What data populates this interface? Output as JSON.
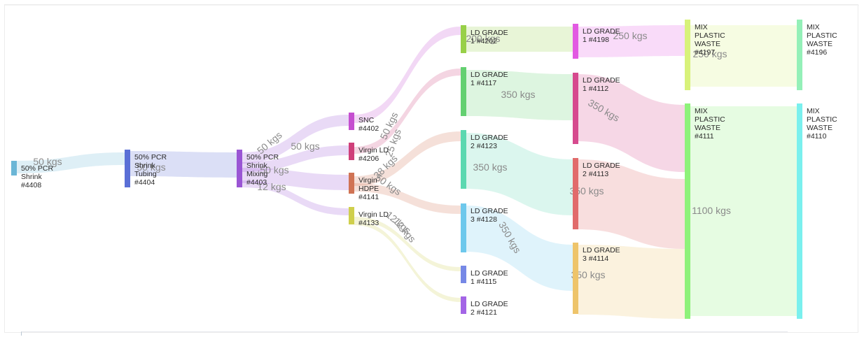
{
  "chart_data": {
    "type": "sankey",
    "unit": "kgs",
    "nodes": [
      {
        "id": "n4408",
        "label": [
          "50% PCR",
          "Shrink",
          "#4408"
        ],
        "color": "#6bb6d6"
      },
      {
        "id": "n4404",
        "label": [
          "50% PCR",
          "Shrink",
          "Tubing",
          "#4404"
        ],
        "color": "#5a6fd6"
      },
      {
        "id": "n4403",
        "label": [
          "50% PCR",
          "Shrink",
          "Mixing",
          "#4403"
        ],
        "color": "#9a55d4"
      },
      {
        "id": "n4402",
        "label": [
          "SNC",
          "#4402"
        ],
        "color": "#c54fd0"
      },
      {
        "id": "n4206",
        "label": [
          "Virgin LD",
          "#4206"
        ],
        "color": "#cf3f7a"
      },
      {
        "id": "n4141",
        "label": [
          "Virgin",
          "HDPE",
          "#4141"
        ],
        "color": "#d07354"
      },
      {
        "id": "n4133",
        "label": [
          "Virgin LD",
          "#4133"
        ],
        "color": "#cfcf4c"
      },
      {
        "id": "n4202",
        "label": [
          "LD GRADE",
          "1 #4202"
        ],
        "color": "#98d048"
      },
      {
        "id": "n4117",
        "label": [
          "LD GRADE",
          "1 #4117"
        ],
        "color": "#63d070"
      },
      {
        "id": "n4123",
        "label": [
          "LD GRADE",
          "2 #4123"
        ],
        "color": "#5bd8b0"
      },
      {
        "id": "n4128",
        "label": [
          "LD GRADE",
          "3 #4128"
        ],
        "color": "#6dc8ec"
      },
      {
        "id": "n4115",
        "label": [
          "LD GRADE",
          "1 #4115"
        ],
        "color": "#7688e6"
      },
      {
        "id": "n4121",
        "label": [
          "LD GRADE",
          "2 #4121"
        ],
        "color": "#a365e6"
      },
      {
        "id": "n4198",
        "label": [
          "LD GRADE",
          "1 #4198"
        ],
        "color": "#e25ae2"
      },
      {
        "id": "n4112",
        "label": [
          "LD GRADE",
          "1 #4112"
        ],
        "color": "#d64a8e"
      },
      {
        "id": "n4113",
        "label": [
          "LD GRADE",
          "2 #4113"
        ],
        "color": "#e16b6b"
      },
      {
        "id": "n4114",
        "label": [
          "LD GRADE",
          "3 #4114"
        ],
        "color": "#eec46a"
      },
      {
        "id": "n4197",
        "label": [
          "MIX",
          "PLASTIC",
          "WASTE",
          "#4197"
        ],
        "color": "#d8f27a"
      },
      {
        "id": "n4111",
        "label": [
          "MIX",
          "PLASTIC",
          "WASTE",
          "#4111"
        ],
        "color": "#8ef27a"
      },
      {
        "id": "n4196",
        "label": [
          "MIX",
          "PLASTIC",
          "WASTE",
          "#4196"
        ],
        "color": "#94f0b8"
      },
      {
        "id": "n4110",
        "label": [
          "MIX",
          "PLASTIC",
          "WASTE",
          "#4110"
        ],
        "color": "#7af0ee"
      }
    ],
    "links": [
      {
        "source": "n4408",
        "target": "n4404",
        "label": "50 kgs"
      },
      {
        "source": "n4404",
        "target": "n4403",
        "label": "50 kgs"
      },
      {
        "source": "n4403",
        "target": "n4402",
        "label": "50 kgs"
      },
      {
        "source": "n4403",
        "target": "n4206",
        "label": "50 kgs"
      },
      {
        "source": "n4403",
        "target": "n4141",
        "label": "50 kgs"
      },
      {
        "source": "n4403",
        "target": "n4133",
        "label": "12 kgs"
      },
      {
        "source": "n4402",
        "target": "n4202",
        "label": "50 kgs"
      },
      {
        "source": "n4206",
        "target": "n4117",
        "label": "25 kgs"
      },
      {
        "source": "n4141",
        "target": "n4123",
        "label": "38 kgs"
      },
      {
        "source": "n4141",
        "target": "n4128",
        "label": "50 kgs"
      },
      {
        "source": "n4133",
        "target": "n4115",
        "label": "12 kgs"
      },
      {
        "source": "n4133",
        "target": "n4121",
        "label": "12 kgs"
      },
      {
        "source": "n4202",
        "target": "n4198",
        "label": "200 kgs"
      },
      {
        "source": "n4117",
        "target": "n4112",
        "label": "350 kgs"
      },
      {
        "source": "n4123",
        "target": "n4113",
        "label": "350 kgs"
      },
      {
        "source": "n4128",
        "target": "n4114",
        "label": "350 kgs"
      },
      {
        "source": "n4198",
        "target": "n4197",
        "label": "250 kgs"
      },
      {
        "source": "n4112",
        "target": "n4111",
        "label": "350 kgs"
      },
      {
        "source": "n4113",
        "target": "n4111",
        "label": "350 kgs"
      },
      {
        "source": "n4114",
        "target": "n4111",
        "label": "350 kgs"
      },
      {
        "source": "n4197",
        "target": "n4196",
        "label": "250 kgs"
      },
      {
        "source": "n4111",
        "target": "n4110",
        "label": "1100 kgs"
      }
    ]
  }
}
